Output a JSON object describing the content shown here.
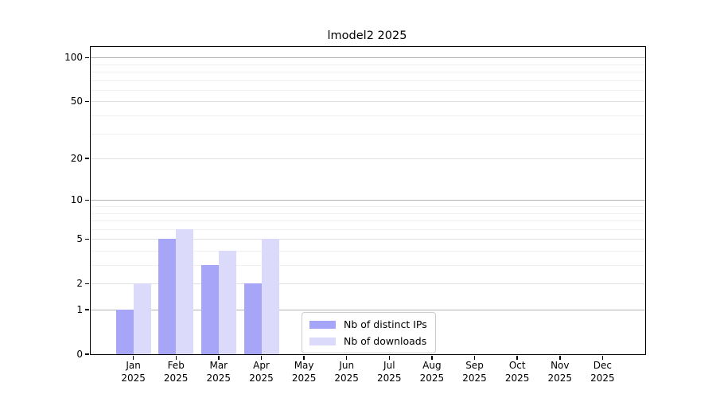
{
  "figure": {
    "title": "lmodel2 2025"
  },
  "chart_data": {
    "type": "bar",
    "title": "lmodel2 2025",
    "year": "2025",
    "months": [
      "Jan",
      "Feb",
      "Mar",
      "Apr",
      "May",
      "Jun",
      "Jul",
      "Aug",
      "Sep",
      "Oct",
      "Nov",
      "Dec"
    ],
    "x_tick_labels": [
      "Jan 2025",
      "Feb 2025",
      "Mar 2025",
      "Apr 2025",
      "May 2025",
      "Jun 2025",
      "Jul 2025",
      "Aug 2025",
      "Sep 2025",
      "Oct 2025",
      "Nov 2025",
      "Dec 2025"
    ],
    "y_scale": "log1p",
    "y_max": 118,
    "y_ticks": [
      0,
      1,
      2,
      5,
      10,
      20,
      50,
      100
    ],
    "y_minor_ticks": [
      3,
      4,
      6,
      7,
      8,
      9,
      30,
      40,
      60,
      70,
      80,
      90
    ],
    "grid": true,
    "legend_position": "lower center-right inside plot",
    "series": [
      {
        "name": "Nb of distinct IPs",
        "color": "#a7a5f7",
        "values": [
          1,
          5,
          3,
          2,
          0,
          0,
          0,
          0,
          0,
          0,
          0,
          0
        ]
      },
      {
        "name": "Nb of downloads",
        "color": "#dbdafa",
        "values": [
          2,
          6,
          4,
          5,
          0,
          0,
          0,
          0,
          0,
          0,
          0,
          0
        ]
      }
    ],
    "colors": {
      "frame": "#000000",
      "grid_decade": "#b2b2b2",
      "grid_major": "#e0e0e0",
      "grid_minor": "#f0f0f0",
      "legend_border": "#cccccc",
      "background": "#ffffff"
    }
  }
}
